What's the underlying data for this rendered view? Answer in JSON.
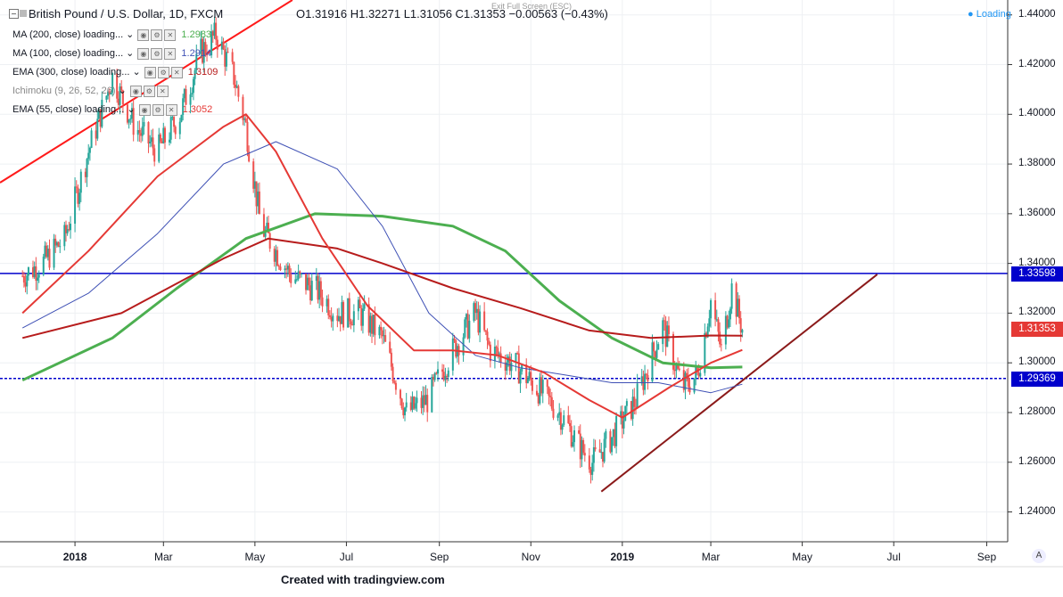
{
  "header": {
    "symbol": "British Pound / U.S. Dollar, 1D, FXCM",
    "ohlc": "O1.31916  H1.32271  L1.31056  C1.31353  −0.00563 (−0.43%)",
    "exit_fullscreen": "Exit Full Screen (ESC)",
    "loading": "Loading"
  },
  "indicators": [
    {
      "label": "MA (200, close) loading...",
      "value": "1.2983",
      "color": "#4caf50"
    },
    {
      "label": "MA (100, close) loading...",
      "value": "1.2914",
      "color": "#3f51b5"
    },
    {
      "label": "EMA (300, close) loading...",
      "value": "1.3109",
      "color": "#b71c1c"
    },
    {
      "label": "Ichimoku (9, 26, 52, 26)",
      "value": "",
      "color": "#999999"
    },
    {
      "label": "EMA (55, close) loading...",
      "value": "1.3052",
      "color": "#e53935"
    }
  ],
  "price_tags": [
    {
      "value": "1.33598",
      "color": "#0000cc"
    },
    {
      "value": "1.31353",
      "color": "#e53935"
    },
    {
      "value": "1.29369",
      "color": "#0000cc"
    }
  ],
  "credit": "Created with tradingview.com",
  "chart_data": {
    "type": "line",
    "title": "British Pound / U.S. Dollar, 1D, FXCM",
    "y_ticks": [
      "1.24000",
      "1.26000",
      "1.28000",
      "1.30000",
      "1.32000",
      "1.34000",
      "1.36000",
      "1.38000",
      "1.40000",
      "1.42000",
      "1.44000"
    ],
    "x_ticks": [
      "2018",
      "Mar",
      "May",
      "Jul",
      "Sep",
      "Nov",
      "2019",
      "Mar",
      "May",
      "Jul",
      "Sep"
    ],
    "x_ticks_bold": [
      "2018",
      "2019"
    ],
    "ylim": [
      1.228,
      1.446
    ],
    "xlim": [
      "2017-11-12",
      "2019-09-15"
    ],
    "grid": true,
    "colors": {
      "up": "#26a69a",
      "down": "#ef5350",
      "mixed_candles": "#7a2a2a"
    },
    "series": [
      {
        "name": "Price (close)",
        "x": [
          "2017-11-27",
          "2017-12-10",
          "2017-12-25",
          "2018-01-10",
          "2018-01-26",
          "2018-02-10",
          "2018-02-25",
          "2018-03-12",
          "2018-03-26",
          "2018-04-05",
          "2018-04-17",
          "2018-04-25",
          "2018-05-05",
          "2018-05-25",
          "2018-06-10",
          "2018-06-25",
          "2018-07-10",
          "2018-07-25",
          "2018-08-10",
          "2018-08-24",
          "2018-09-10",
          "2018-09-25",
          "2018-10-05",
          "2018-10-20",
          "2018-11-05",
          "2018-11-20",
          "2018-12-05",
          "2018-12-12",
          "2018-12-25",
          "2019-01-10",
          "2019-01-28",
          "2019-02-10",
          "2019-02-20",
          "2019-03-01",
          "2019-03-08",
          "2019-03-15",
          "2019-03-22"
        ],
        "y": [
          1.335,
          1.34,
          1.35,
          1.385,
          1.415,
          1.395,
          1.385,
          1.4,
          1.425,
          1.432,
          1.415,
          1.395,
          1.355,
          1.335,
          1.33,
          1.32,
          1.32,
          1.31,
          1.28,
          1.285,
          1.305,
          1.32,
          1.305,
          1.3,
          1.29,
          1.28,
          1.265,
          1.26,
          1.27,
          1.285,
          1.315,
          1.29,
          1.295,
          1.325,
          1.305,
          1.33,
          1.3135
        ]
      },
      {
        "name": "MA (200, close)",
        "color": "#4caf50",
        "x": [
          "2017-11-27",
          "2018-01-26",
          "2018-03-10",
          "2018-04-25",
          "2018-06-10",
          "2018-07-25",
          "2018-09-10",
          "2018-10-15",
          "2018-11-20",
          "2018-12-25",
          "2019-01-28",
          "2019-03-01",
          "2019-03-22"
        ],
        "y": [
          1.293,
          1.31,
          1.33,
          1.35,
          1.36,
          1.359,
          1.355,
          1.345,
          1.325,
          1.31,
          1.3,
          1.298,
          1.2983
        ]
      },
      {
        "name": "MA (100, close)",
        "color": "#3f51b5",
        "x": [
          "2017-11-27",
          "2018-01-10",
          "2018-02-25",
          "2018-04-10",
          "2018-05-15",
          "2018-06-25",
          "2018-07-25",
          "2018-08-25",
          "2018-09-25",
          "2018-10-25",
          "2018-11-25",
          "2018-12-25",
          "2019-01-25",
          "2019-03-01",
          "2019-03-22"
        ],
        "y": [
          1.314,
          1.328,
          1.352,
          1.38,
          1.389,
          1.378,
          1.355,
          1.32,
          1.303,
          1.298,
          1.295,
          1.292,
          1.292,
          1.288,
          1.2914
        ]
      },
      {
        "name": "EMA (300, close)",
        "color": "#b71c1c",
        "x": [
          "2017-11-27",
          "2018-02-01",
          "2018-04-10",
          "2018-05-10",
          "2018-06-25",
          "2018-07-25",
          "2018-09-10",
          "2018-10-25",
          "2018-12-10",
          "2019-01-20",
          "2019-03-01",
          "2019-03-22"
        ],
        "y": [
          1.31,
          1.32,
          1.342,
          1.35,
          1.346,
          1.34,
          1.33,
          1.322,
          1.313,
          1.31,
          1.311,
          1.3109
        ]
      },
      {
        "name": "EMA (55, close)",
        "color": "#e53935",
        "x": [
          "2017-11-27",
          "2018-01-10",
          "2018-02-25",
          "2018-04-10",
          "2018-04-25",
          "2018-05-15",
          "2018-06-15",
          "2018-07-15",
          "2018-08-15",
          "2018-09-10",
          "2018-10-10",
          "2018-11-10",
          "2018-12-10",
          "2019-01-01",
          "2019-02-01",
          "2019-03-01",
          "2019-03-22"
        ],
        "y": [
          1.32,
          1.345,
          1.375,
          1.395,
          1.4,
          1.385,
          1.35,
          1.323,
          1.305,
          1.305,
          1.303,
          1.296,
          1.285,
          1.278,
          1.29,
          1.3,
          1.3052
        ]
      }
    ],
    "levels": [
      {
        "value": 1.33598,
        "style": "solid",
        "color": "#0000cc"
      },
      {
        "value": 1.29369,
        "style": "dashed",
        "color": "#0000cc"
      }
    ],
    "trendlines": [
      {
        "color": "#ff1a1a",
        "from": {
          "x": "2017-11-12",
          "y": 1.3725
        },
        "to": {
          "x": "2018-05-26",
          "y": 1.446
        }
      },
      {
        "color": "#8b1a1a",
        "from": {
          "x": "2018-12-18",
          "y": 1.2482
        },
        "to": {
          "x": "2019-06-20",
          "y": 1.3356
        }
      }
    ]
  }
}
